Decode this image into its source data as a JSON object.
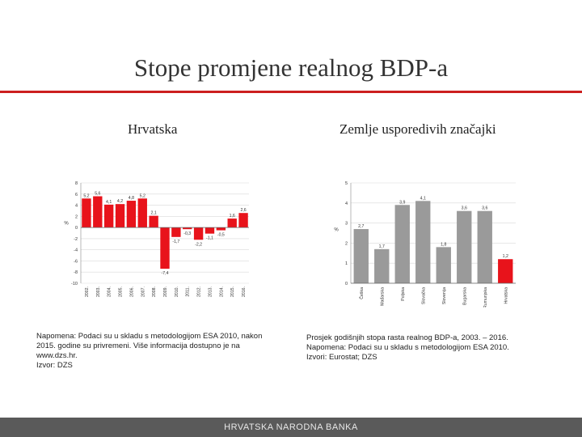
{
  "slide": {
    "title": "Stope promjene realnog BDP-a"
  },
  "left_panel": {
    "subtitle": "Hrvatska",
    "notes": [
      "Napomena: Podaci su u skladu s metodologijom ESA 2010, nakon",
      "2015. godine su privremeni. Više informacija dostupno je na",
      "www.dzs.hr.",
      "Izvor: DZS"
    ]
  },
  "right_panel": {
    "subtitle": "Zemlje usporedivih značajki",
    "notes": [
      "Prosjek godišnjih stopa rasta realnog BDP-a, 2003. – 2016.",
      "Napomena: Podaci su u skladu s metodologijom ESA 2010.",
      "Izvori: Eurostat; DZS"
    ]
  },
  "footer": {
    "text": "HRVATSKA NARODNA BANKA"
  },
  "colors": {
    "accent_red": "#e8131b",
    "bar_gray": "#9a9a9a",
    "rule_red": "#cc1f1f",
    "footer_bg": "#5a5a5a"
  },
  "chart_data": [
    {
      "type": "bar",
      "ylabel": "%",
      "ylim": [
        -10,
        8
      ],
      "yticks": [
        8,
        6,
        4,
        2,
        0,
        -2,
        -4,
        -6,
        -8,
        -10
      ],
      "ytick_labels": [
        "8",
        "6",
        "4",
        "2",
        "0",
        "-2",
        "-4",
        "-6",
        "-8",
        "-10"
      ],
      "categories": [
        "2002.",
        "2003.",
        "2004.",
        "2005.",
        "2006.",
        "2007.",
        "2008.",
        "2009.",
        "2010.",
        "2011.",
        "2012.",
        "2013.",
        "2014.",
        "2015.",
        "2016."
      ],
      "values": [
        5.2,
        5.6,
        4.1,
        4.2,
        4.8,
        5.2,
        2.1,
        -7.4,
        -1.7,
        -0.3,
        -2.2,
        -1.1,
        -0.5,
        1.6,
        2.6
      ],
      "data_labels": [
        "5,2",
        "5,6",
        "4,1",
        "4,2",
        "4,8",
        "5,2",
        "2,1",
        "-7,4",
        "-1,7",
        "-0,3",
        "-2,2",
        "-1,1",
        "-0,5",
        "1,6",
        "2,6"
      ],
      "color": "#e8131b",
      "grid": true
    },
    {
      "type": "bar",
      "ylabel": "%",
      "ylim": [
        0,
        5
      ],
      "yticks": [
        5,
        4,
        3,
        2,
        1,
        0
      ],
      "ytick_labels": [
        "5",
        "4",
        "3",
        "2",
        "1",
        "0"
      ],
      "categories": [
        "Češka",
        "Mađarska",
        "Poljska",
        "Slovačka",
        "Slovenija",
        "Bugarska",
        "Rumunjska",
        "Hrvatska"
      ],
      "values": [
        2.7,
        1.7,
        3.9,
        4.1,
        1.8,
        3.6,
        3.6,
        1.2
      ],
      "data_labels": [
        "2,7",
        "1,7",
        "3,9",
        "4,1",
        "1,8",
        "3,6",
        "3,6",
        "1,2"
      ],
      "colors": [
        "#9a9a9a",
        "#9a9a9a",
        "#9a9a9a",
        "#9a9a9a",
        "#9a9a9a",
        "#9a9a9a",
        "#9a9a9a",
        "#e8131b"
      ],
      "grid": true
    }
  ]
}
